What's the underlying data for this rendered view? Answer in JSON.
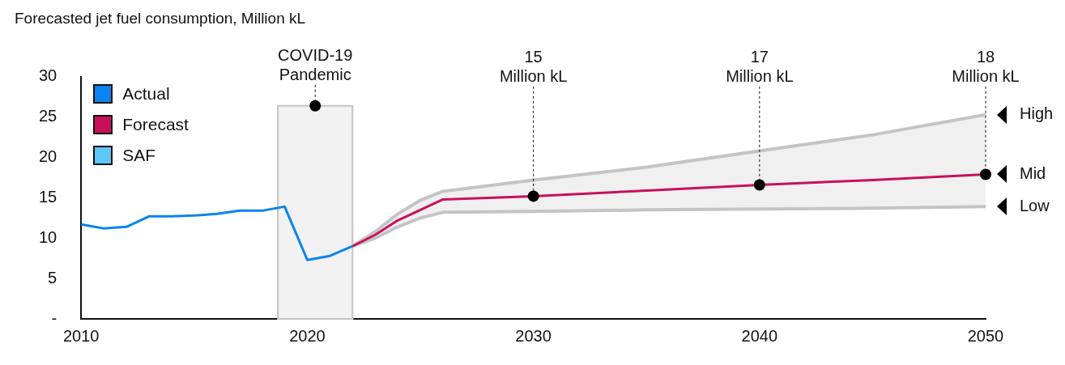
{
  "chart_data": {
    "type": "line",
    "title": "Forecasted jet fuel consumption, Million kL",
    "xlim": [
      2010,
      2050
    ],
    "xticks": [
      2010,
      2020,
      2030,
      2040,
      2050
    ],
    "ylim": [
      0,
      30
    ],
    "yticks": [
      {
        "value": 0,
        "label": "-"
      },
      5,
      10,
      15,
      20,
      25,
      30
    ],
    "grid": false,
    "legend": "top left",
    "series": [
      {
        "name": "Actual",
        "color": "#0a84f0",
        "x": [
          2010,
          2011,
          2012,
          2013,
          2014,
          2015,
          2016,
          2017,
          2018,
          2019,
          2020,
          2021,
          2022
        ],
        "values": [
          11.7,
          11.2,
          11.4,
          12.7,
          12.7,
          12.8,
          13.0,
          13.4,
          13.4,
          13.9,
          7.3,
          7.8,
          9.0
        ]
      },
      {
        "name": "Forecast",
        "color": "#c8105a",
        "x": [
          2022,
          2023,
          2024,
          2025,
          2026,
          2030,
          2035,
          2040,
          2045,
          2050
        ],
        "values": [
          9.0,
          10.4,
          12.2,
          13.5,
          14.8,
          15.2,
          15.9,
          16.6,
          17.2,
          17.9
        ],
        "lower": [
          9.0,
          10.0,
          11.4,
          12.5,
          13.2,
          13.3,
          13.5,
          13.6,
          13.7,
          13.9
        ],
        "upper": [
          9.0,
          10.8,
          13.0,
          14.7,
          15.8,
          17.2,
          18.8,
          20.8,
          22.8,
          25.3
        ]
      },
      {
        "name": "SAF",
        "color": "#5bc8f5"
      },
      {
        "color": "#c4c4c4",
        "x": [
          2022,
          2023,
          2024,
          2025,
          2026,
          2030,
          2035,
          2040,
          2045,
          2050
        ],
        "values": [
          9.0,
          10.0,
          11.4,
          12.5,
          13.2,
          13.3,
          13.5,
          13.6,
          13.7,
          13.9
        ]
      },
      {
        "color": "#c4c4c4",
        "x": [
          2022,
          2023,
          2024,
          2025,
          2026,
          2030,
          2035,
          2040,
          2045,
          2050
        ],
        "values": [
          9.0,
          10.8,
          13.0,
          14.7,
          15.8,
          17.2,
          18.8,
          20.8,
          22.8,
          25.3
        ]
      }
    ],
    "bands": [
      {
        "axis": "x",
        "from": 2018.7,
        "to": 2022.0,
        "label": "COVID-19\nPandemic",
        "color": "#f2f2f2"
      }
    ],
    "annotations": [
      {
        "text": "15\nMillion kL",
        "x": 2030,
        "y": 15.2
      },
      {
        "text": "17\nMillion kL",
        "x": 2040,
        "y": 16.6
      },
      {
        "text": "18\nMillion kL",
        "x": 2050,
        "y": 17.9
      },
      {
        "text": "High",
        "x": 2050,
        "y": 25.3
      },
      {
        "text": "Mid",
        "x": 2050,
        "y": 17.9
      },
      {
        "text": "Low",
        "x": 2050,
        "y": 13.9
      }
    ]
  }
}
